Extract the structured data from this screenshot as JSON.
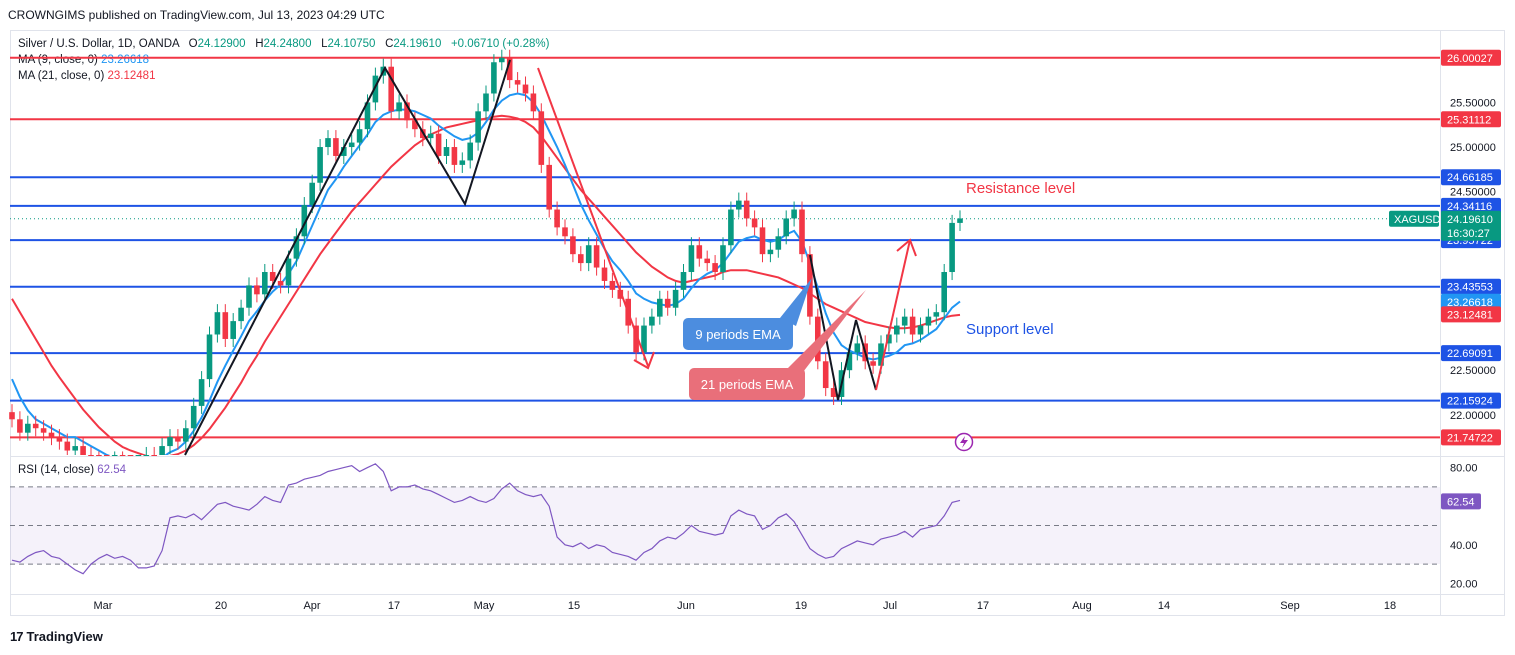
{
  "header": {
    "text": "CROWNGIMS published on TradingView.com, Jul 13, 2023 04:29 UTC"
  },
  "legend": {
    "symbol": "Silver / U.S. Dollar, 1D, OANDA",
    "ohlc": {
      "o_label": "O",
      "o": "24.12900",
      "h_label": "H",
      "h": "24.24800",
      "l_label": "L",
      "l": "24.10750",
      "c_label": "C",
      "c": "24.19610",
      "chg": "+0.06710 (+0.28%)"
    },
    "ma9": {
      "label": "MA (9, close, 0)",
      "value": "23.26618"
    },
    "ma21": {
      "label": "MA (21, close, 0)",
      "value": "23.12481"
    }
  },
  "rsi_legend": {
    "label": "RSI (14, close)",
    "value": "62.54"
  },
  "footer": {
    "brand": "TradingView",
    "logo": "17"
  },
  "chart_data": {
    "type": "candlestick",
    "symbol": "XAGUSD",
    "timeframe": "1D",
    "y_range": [
      21.55,
      26.3
    ],
    "y_ticks": [
      {
        "value": 25.5,
        "label": "25.50000"
      },
      {
        "value": 25.0,
        "label": "25.00000"
      },
      {
        "value": 24.5,
        "label": "24.50000"
      },
      {
        "value": 22.5,
        "label": "22.50000"
      },
      {
        "value": 22.0,
        "label": "22.00000"
      }
    ],
    "x_ticks": [
      "Mar",
      "20",
      "Apr",
      "17",
      "May",
      "15",
      "Jun",
      "19",
      "Jul",
      "17",
      "Aug",
      "14",
      "Sep",
      "18"
    ],
    "levels": [
      {
        "value": 26.00027,
        "label": "26.00027",
        "color": "#f23645"
      },
      {
        "value": 25.31112,
        "label": "25.31112",
        "color": "#f23645"
      },
      {
        "value": 24.66185,
        "label": "24.66185",
        "color": "#1e53e5"
      },
      {
        "value": 24.34116,
        "label": "24.34116",
        "color": "#1e53e5"
      },
      {
        "value": 23.95722,
        "label": "23.95722",
        "color": "#1e53e5"
      },
      {
        "value": 23.43553,
        "label": "23.43553",
        "color": "#1e53e5"
      },
      {
        "value": 22.69091,
        "label": "22.69091",
        "color": "#1e53e5"
      },
      {
        "value": 22.15924,
        "label": "22.15924",
        "color": "#1e53e5"
      },
      {
        "value": 21.74722,
        "label": "21.74722",
        "color": "#f23645"
      }
    ],
    "price_tag": {
      "value": 24.1961,
      "symbol": "XAGUSD",
      "price": "24.19610",
      "countdown": "16:30:27",
      "color": "#089981"
    },
    "ma_tags": [
      {
        "value": 23.26618,
        "label": "23.26618",
        "color": "#2196f3"
      },
      {
        "value": 23.12481,
        "label": "23.12481",
        "color": "#f23645"
      }
    ],
    "closes": [
      21.95,
      21.8,
      21.9,
      21.85,
      21.8,
      21.75,
      21.7,
      21.6,
      21.65,
      21.55,
      21.5,
      21.45,
      21.4,
      21.5,
      21.45,
      21.35,
      21.4,
      21.55,
      21.45,
      21.65,
      21.75,
      21.7,
      21.85,
      22.1,
      22.4,
      22.9,
      23.15,
      22.85,
      23.05,
      23.2,
      23.45,
      23.35,
      23.6,
      23.5,
      23.45,
      23.75,
      24.0,
      24.35,
      24.6,
      25.0,
      25.1,
      24.9,
      25.0,
      25.05,
      25.2,
      25.5,
      25.8,
      25.9,
      25.4,
      25.5,
      25.3,
      25.2,
      25.1,
      25.15,
      24.9,
      25.0,
      24.8,
      24.85,
      25.05,
      25.4,
      25.6,
      25.95,
      26.0,
      25.75,
      25.7,
      25.6,
      25.4,
      24.8,
      24.3,
      24.1,
      24.0,
      23.8,
      23.7,
      23.9,
      23.65,
      23.5,
      23.4,
      23.3,
      23.0,
      22.7,
      23.0,
      23.1,
      23.3,
      23.2,
      23.4,
      23.6,
      23.9,
      23.75,
      23.7,
      23.6,
      23.9,
      24.3,
      24.4,
      24.2,
      24.1,
      23.8,
      23.85,
      24.0,
      24.2,
      24.3,
      23.8,
      23.1,
      22.6,
      22.3,
      22.2,
      22.5,
      22.7,
      22.8,
      22.6,
      22.55,
      22.8,
      22.9,
      23.0,
      23.1,
      22.9,
      23.0,
      23.1,
      23.15,
      23.6,
      24.15,
      24.2
    ],
    "ma9": [
      22.4,
      22.2,
      22.05,
      21.95,
      21.9,
      21.85,
      21.8,
      21.75,
      21.75,
      21.7,
      21.65,
      21.6,
      21.55,
      21.52,
      21.5,
      21.48,
      21.45,
      21.45,
      21.47,
      21.52,
      21.58,
      21.62,
      21.7,
      21.82,
      21.97,
      22.16,
      22.37,
      22.55,
      22.72,
      22.88,
      23.05,
      23.16,
      23.28,
      23.38,
      23.46,
      23.58,
      23.72,
      23.92,
      24.12,
      24.32,
      24.52,
      24.64,
      24.78,
      24.9,
      25.02,
      25.14,
      25.28,
      25.36,
      25.4,
      25.42,
      25.42,
      25.4,
      25.36,
      25.32,
      25.24,
      25.18,
      25.12,
      25.08,
      25.1,
      25.16,
      25.28,
      25.42,
      25.52,
      25.58,
      25.6,
      25.58,
      25.5,
      25.36,
      25.18,
      25.0,
      24.8,
      24.58,
      24.36,
      24.18,
      24.02,
      23.86,
      23.72,
      23.62,
      23.5,
      23.36,
      23.3,
      23.26,
      23.24,
      23.22,
      23.24,
      23.3,
      23.42,
      23.52,
      23.58,
      23.62,
      23.7,
      23.82,
      23.94,
      23.98,
      24.0,
      23.96,
      23.94,
      23.96,
      24.02,
      24.06,
      23.94,
      23.7,
      23.42,
      23.14,
      22.92,
      22.78,
      22.72,
      22.68,
      22.64,
      22.62,
      22.64,
      22.66,
      22.7,
      22.78,
      22.8,
      22.84,
      22.9,
      22.96,
      23.08,
      23.2,
      23.27
    ],
    "ma21": [
      23.3,
      23.15,
      23.0,
      22.85,
      22.7,
      22.55,
      22.42,
      22.3,
      22.18,
      22.06,
      21.96,
      21.86,
      21.78,
      21.7,
      21.64,
      21.6,
      21.57,
      21.54,
      21.52,
      21.52,
      21.54,
      21.56,
      21.6,
      21.66,
      21.74,
      21.84,
      21.96,
      22.08,
      22.22,
      22.36,
      22.52,
      22.66,
      22.82,
      22.96,
      23.1,
      23.24,
      23.38,
      23.52,
      23.66,
      23.8,
      23.92,
      24.04,
      24.16,
      24.28,
      24.38,
      24.48,
      24.58,
      24.68,
      24.78,
      24.86,
      24.94,
      25.02,
      25.08,
      25.14,
      25.18,
      25.22,
      25.24,
      25.26,
      25.28,
      25.3,
      25.32,
      25.34,
      25.35,
      25.34,
      25.32,
      25.28,
      25.22,
      25.12,
      25.0,
      24.88,
      24.76,
      24.64,
      24.52,
      24.42,
      24.32,
      24.22,
      24.12,
      24.02,
      23.92,
      23.82,
      23.74,
      23.66,
      23.6,
      23.54,
      23.5,
      23.48,
      23.5,
      23.52,
      23.54,
      23.56,
      23.6,
      23.62,
      23.62,
      23.62,
      23.6,
      23.58,
      23.56,
      23.54,
      23.5,
      23.46,
      23.42,
      23.36,
      23.3,
      23.24,
      23.2,
      23.16,
      23.12,
      23.08,
      23.04,
      23.02,
      23.0,
      22.98,
      22.97,
      22.97,
      22.98,
      23.0,
      23.03,
      23.06,
      23.09,
      23.11,
      23.12
    ],
    "rsi": {
      "range": [
        15,
        85
      ],
      "ticks": [
        {
          "value": 80,
          "label": "80.00"
        },
        {
          "value": 40,
          "label": "40.00"
        },
        {
          "value": 20,
          "label": "20.00"
        }
      ],
      "bands": [
        70,
        50,
        30
      ],
      "last": {
        "value": 62.54,
        "label": "62.54"
      },
      "values": [
        32,
        31,
        34,
        36,
        37,
        34,
        33,
        30,
        27,
        25,
        30,
        33,
        35,
        33,
        34,
        32,
        28,
        28,
        29,
        37,
        54,
        55,
        54,
        56,
        53,
        57,
        61,
        62,
        60,
        59,
        58,
        61,
        65,
        63,
        62,
        71,
        72,
        74,
        75,
        76,
        78,
        79,
        80,
        81,
        78,
        80,
        82,
        78,
        68,
        70,
        70,
        71,
        69,
        68,
        66,
        64,
        62,
        63,
        65,
        63,
        62,
        64,
        69,
        72,
        68,
        66,
        65,
        66,
        60,
        44,
        40,
        39,
        41,
        38,
        40,
        39,
        36,
        35,
        34,
        32,
        36,
        38,
        42,
        44,
        43,
        46,
        50,
        47,
        46,
        45,
        46,
        55,
        58,
        56,
        55,
        48,
        50,
        54,
        56,
        52,
        45,
        38,
        35,
        33,
        34,
        38,
        40,
        42,
        41,
        40,
        43,
        44,
        45,
        47,
        44,
        48,
        49,
        50,
        55,
        62,
        63
      ]
    },
    "annotations": {
      "resistance": "Resistance level",
      "support": "Support level",
      "ema9_callout": "9 periods EMA",
      "ema21_callout": "21 periods EMA"
    }
  }
}
